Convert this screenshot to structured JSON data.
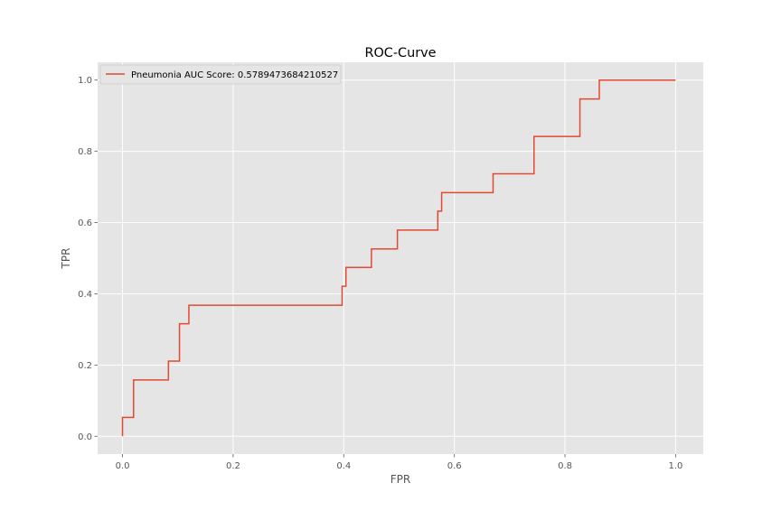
{
  "chart_data": {
    "type": "line",
    "title": "ROC-Curve",
    "xlabel": "FPR",
    "ylabel": "TPR",
    "xlim": [
      -0.045,
      1.05
    ],
    "ylim": [
      -0.05,
      1.05
    ],
    "xticks": [
      0.0,
      0.2,
      0.4,
      0.6,
      0.8,
      1.0
    ],
    "xtick_labels": [
      "0.0",
      "0.2",
      "0.4",
      "0.6",
      "0.8",
      "1.0"
    ],
    "yticks": [
      0.0,
      0.2,
      0.4,
      0.6,
      0.8,
      1.0
    ],
    "ytick_labels": [
      "0.0",
      "0.2",
      "0.4",
      "0.6",
      "0.8",
      "1.0"
    ],
    "grid": true,
    "legend_position": "top-left",
    "style": {
      "plot_background": "#e5e5e5",
      "grid_color": "#ffffff",
      "line_color": "#e24a33"
    },
    "series": [
      {
        "name": "Pneumonia AUC Score: 0.5789473684210527",
        "x": [
          0.0,
          0.0,
          0.02,
          0.02,
          0.083,
          0.083,
          0.103,
          0.103,
          0.12,
          0.12,
          0.397,
          0.397,
          0.404,
          0.404,
          0.45,
          0.45,
          0.497,
          0.497,
          0.57,
          0.57,
          0.577,
          0.577,
          0.67,
          0.67,
          0.744,
          0.744,
          0.827,
          0.827,
          0.862,
          0.862,
          1.0
        ],
        "y": [
          0.0,
          0.053,
          0.053,
          0.158,
          0.158,
          0.211,
          0.211,
          0.316,
          0.316,
          0.368,
          0.368,
          0.421,
          0.421,
          0.474,
          0.474,
          0.526,
          0.526,
          0.579,
          0.579,
          0.632,
          0.632,
          0.684,
          0.684,
          0.737,
          0.737,
          0.842,
          0.842,
          0.947,
          0.947,
          1.0,
          1.0
        ]
      }
    ]
  }
}
